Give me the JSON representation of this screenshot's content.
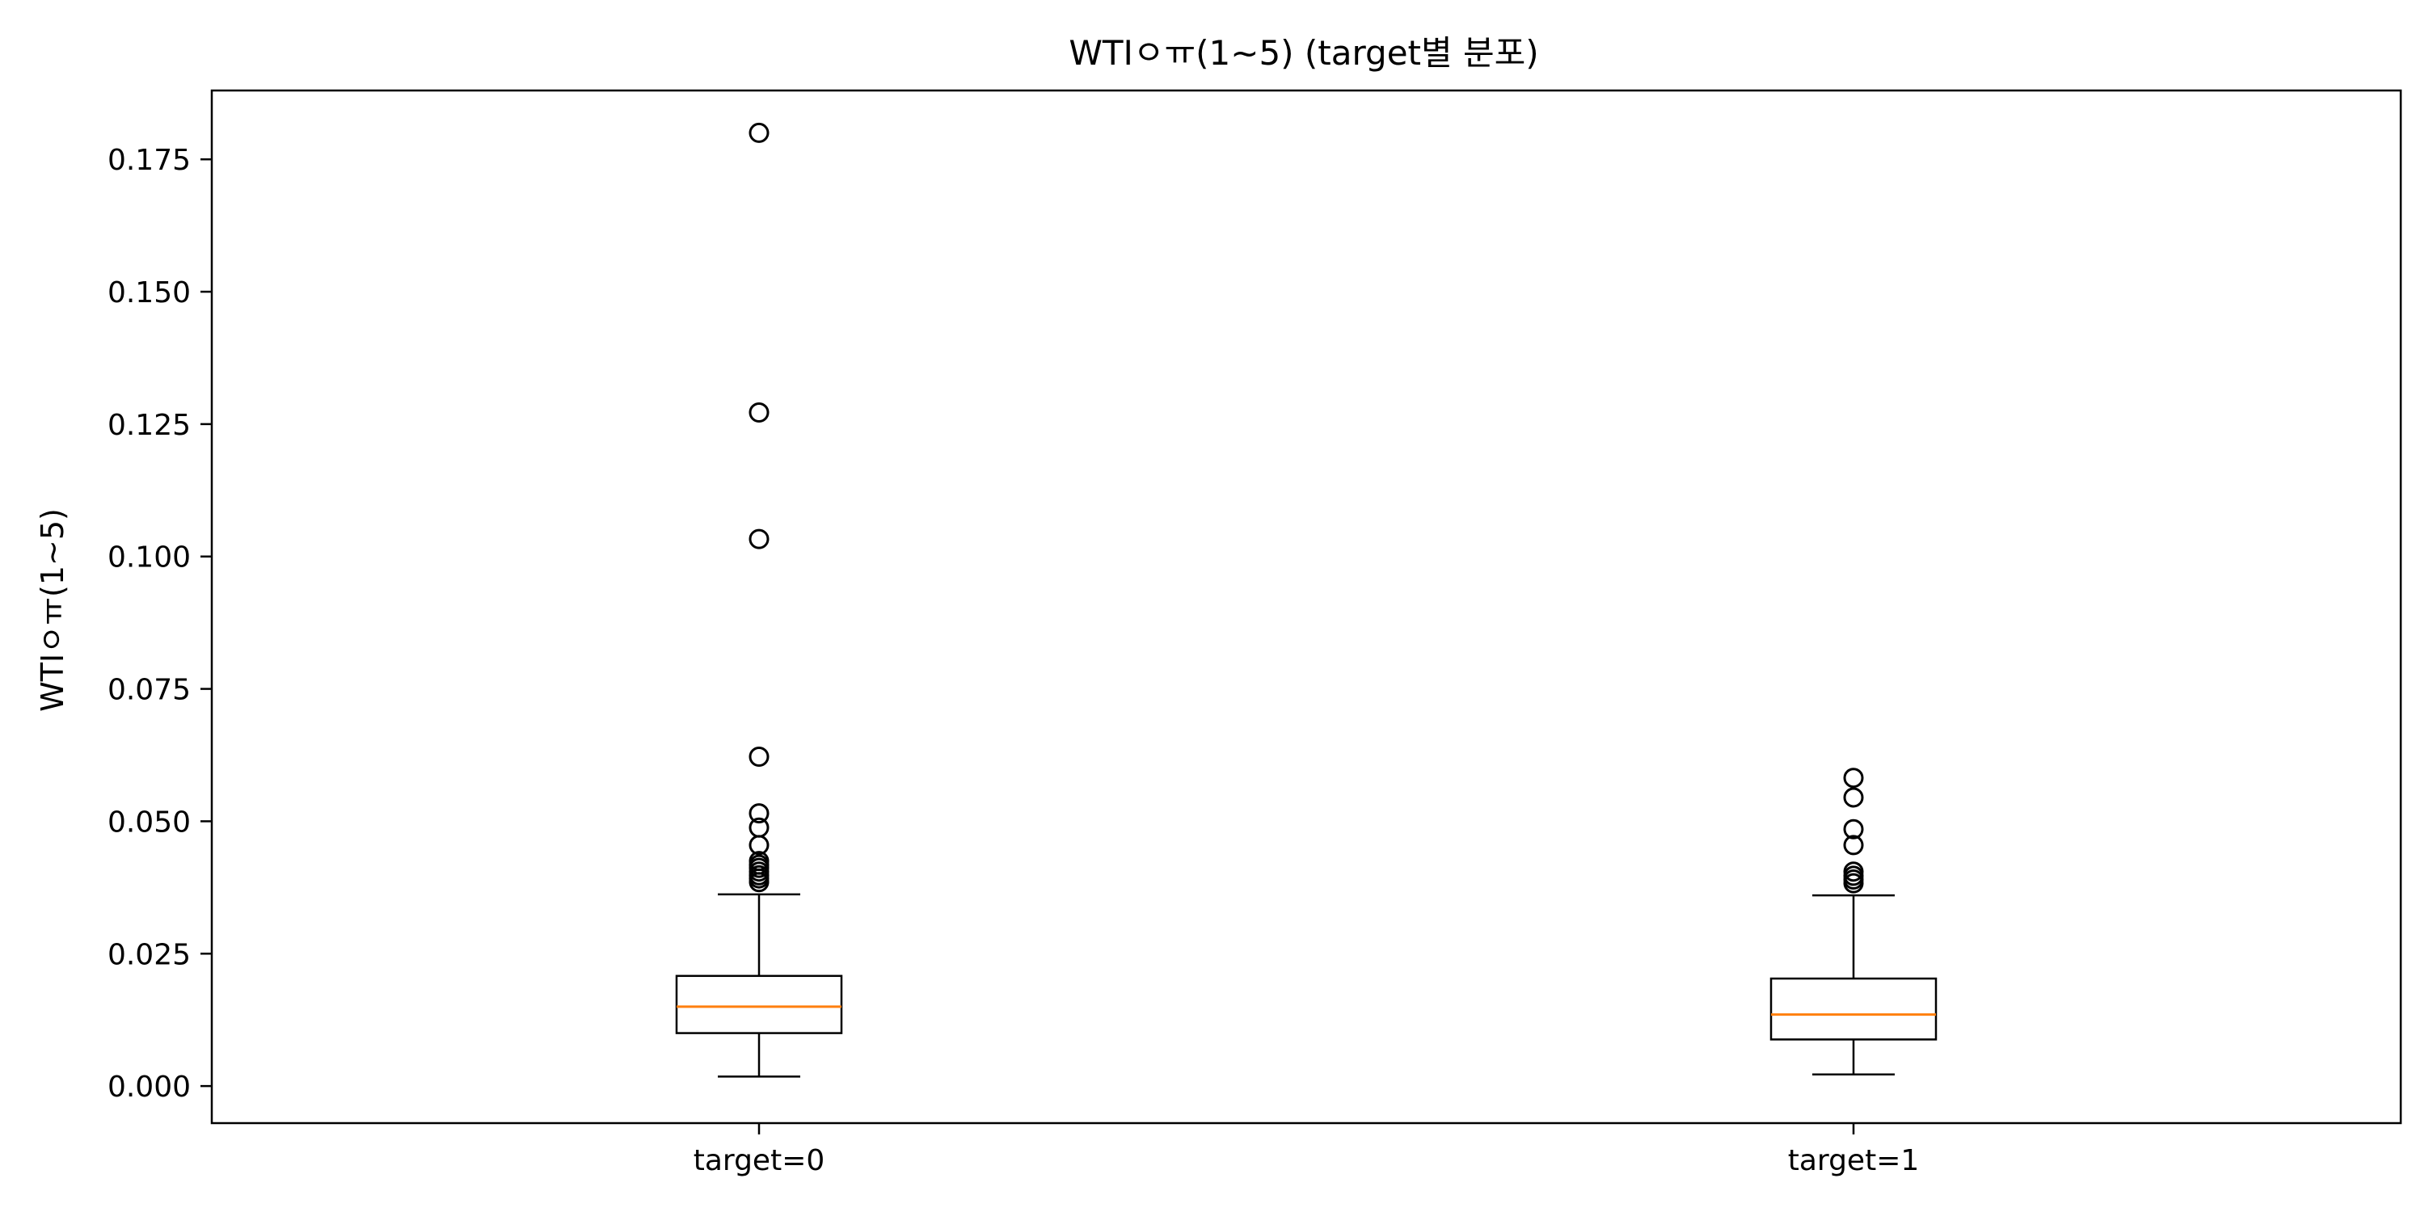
{
  "chart_data": {
    "type": "box",
    "title": "WTIㅇㅠ(1~5) (target별 분포)",
    "xlabel": "",
    "ylabel": "WTIㅇㅠ(1~5)",
    "ylim": [
      -0.007,
      0.188
    ],
    "yticks": [
      "0.000",
      "0.025",
      "0.050",
      "0.075",
      "0.100",
      "0.125",
      "0.150",
      "0.175"
    ],
    "categories": [
      "target=0",
      "target=1"
    ],
    "grid": false,
    "colors": {
      "box": "#000000",
      "median": "#ff7f0e",
      "outlier": "#000000"
    },
    "boxes": [
      {
        "label": "target=0",
        "whisker_low": 0.0018,
        "q1": 0.01,
        "median": 0.015,
        "q3": 0.0208,
        "whisker_high": 0.0362,
        "outliers": [
          0.0385,
          0.0392,
          0.0398,
          0.0405,
          0.0412,
          0.0418,
          0.0425,
          0.0455,
          0.0488,
          0.0515,
          0.0622,
          0.1033,
          0.1272,
          0.18
        ]
      },
      {
        "label": "target=1",
        "whisker_low": 0.0022,
        "q1": 0.0088,
        "median": 0.0135,
        "q3": 0.0203,
        "whisker_high": 0.036,
        "outliers": [
          0.0383,
          0.039,
          0.0397,
          0.0405,
          0.0455,
          0.0485,
          0.0545,
          0.0582
        ]
      }
    ]
  }
}
